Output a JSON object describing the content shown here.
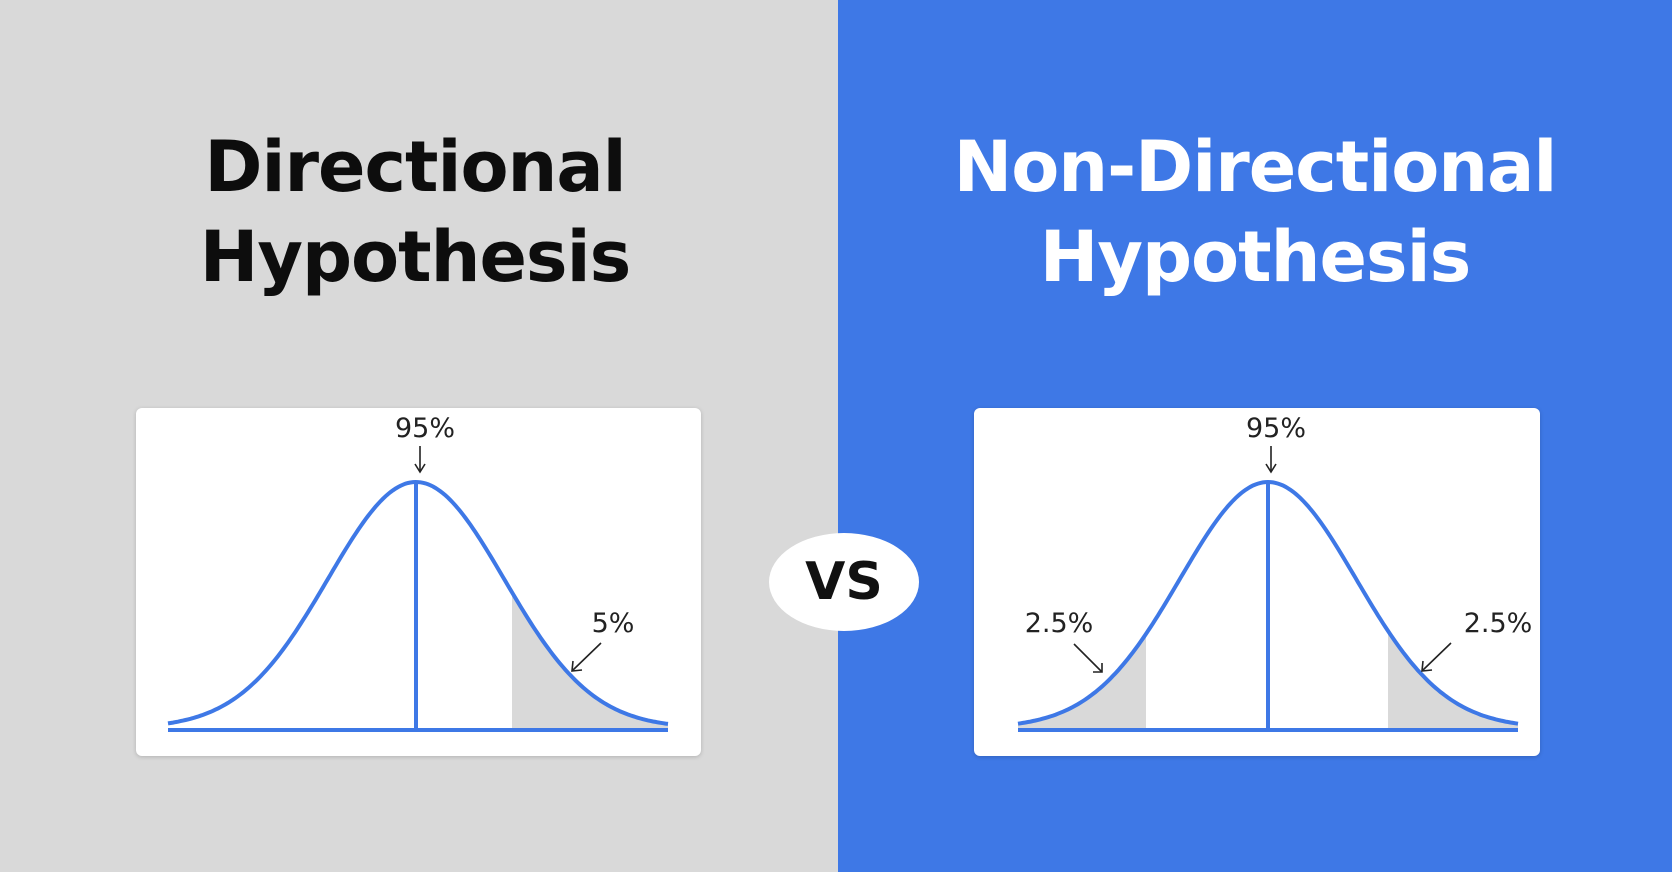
{
  "left": {
    "title_line1": "Directional",
    "title_line2": "Hypothesis",
    "background": "#d9d9d9",
    "title_color": "#0d0d0d",
    "diagram": {
      "center_label": "95%",
      "tail_label": "5%",
      "tails": "one-tailed (right)"
    }
  },
  "right": {
    "title_line1": "Non-Directional",
    "title_line2": "Hypothesis",
    "background": "#3e78e6",
    "title_color": "#ffffff",
    "diagram": {
      "center_label": "95%",
      "left_tail_label": "2.5%",
      "right_tail_label": "2.5%",
      "tails": "two-tailed"
    }
  },
  "badge": {
    "text": "VS"
  },
  "colors": {
    "curve": "#3e78e6",
    "tail_fill": "#d9d9d9",
    "card": "#ffffff"
  }
}
